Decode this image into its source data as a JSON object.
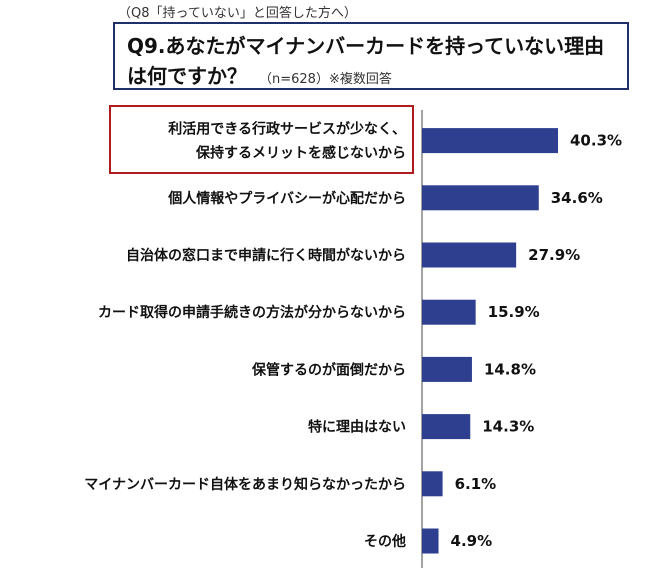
{
  "header": {
    "note": "（Q8「持っていない」と回答した方へ）",
    "title_line1": "Q9.あなたがマイナンバーカードを持っていない理由",
    "title_line2": "は何ですか？",
    "title_sub": "（n=628）※複数回答"
  },
  "colors": {
    "bar": "#2e3f8f",
    "highlight": "#b01c1c",
    "title_border": "#1f2f6b"
  },
  "chart_data": {
    "type": "bar",
    "orientation": "horizontal",
    "categories": [
      [
        "利活用できる行政サービスが少なく、",
        "保持するメリットを感じないから"
      ],
      [
        "個人情報やプライバシーが心配だから"
      ],
      [
        "自治体の窓口まで申請に行く時間がないから"
      ],
      [
        "カード取得の申請手続きの方法が分からないから"
      ],
      [
        "保管するのが面倒だから"
      ],
      [
        "特に理由はない"
      ],
      [
        "マイナンバーカード自体をあまり知らなかったから"
      ],
      [
        "その他"
      ]
    ],
    "values": [
      40.3,
      34.6,
      27.9,
      15.9,
      14.8,
      14.3,
      6.1,
      4.9
    ],
    "value_labels": [
      "40.3%",
      "34.6%",
      "27.9%",
      "15.9%",
      "14.8%",
      "14.3%",
      "6.1%",
      "4.9%"
    ],
    "highlighted_index": 0,
    "xlim": [
      0,
      50
    ],
    "grid": false
  }
}
